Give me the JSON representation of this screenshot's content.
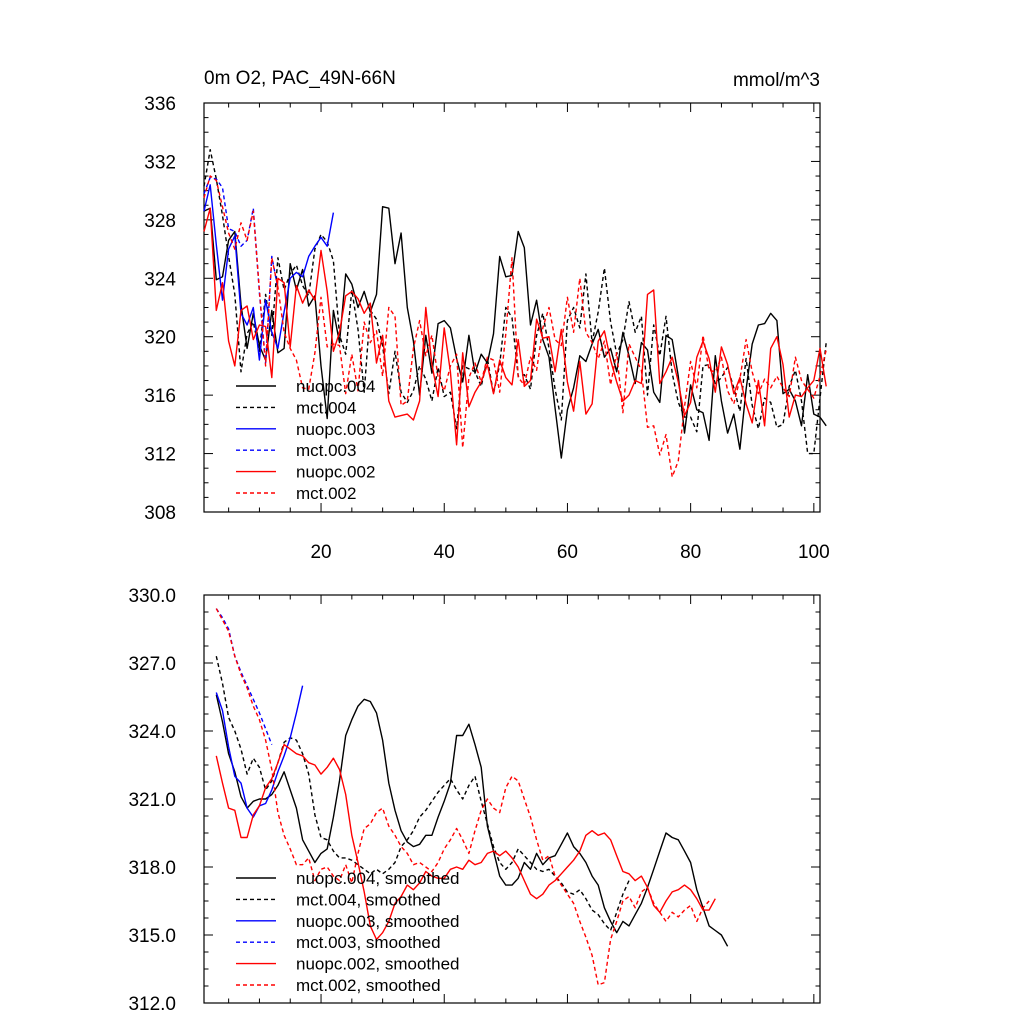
{
  "chart_data": [
    {
      "type": "line",
      "title_left": "0m O2, PAC_49N-66N",
      "title_right": "mmol/m^3",
      "xlim": [
        1,
        101
      ],
      "ylim": [
        308,
        336
      ],
      "xticks": [
        20,
        40,
        60,
        80,
        100
      ],
      "yticks": [
        308,
        312,
        316,
        320,
        324,
        328,
        332,
        336
      ],
      "ytick_labels": [
        "308",
        "312",
        "316",
        "320",
        "324",
        "328",
        "332",
        "336"
      ],
      "legend_position": "bottom-left",
      "series": [
        {
          "name": "nuopc.004",
          "color": "#000000",
          "dash": false,
          "x_start": 1,
          "values": [
            328.6,
            328.8,
            323.9,
            324.1,
            326.6,
            327.2,
            322.2,
            319.2,
            321.6,
            319.4,
            318.4,
            321.8,
            318.9,
            319.2,
            325.0,
            323.2,
            324.6,
            322.1,
            322.8,
            318.0,
            314.4,
            321.8,
            319.6,
            324.3,
            323.6,
            322.0,
            323.1,
            321.7,
            322.9,
            328.9,
            328.8,
            325.0,
            327.1,
            322.0,
            319.7,
            316.0,
            320.1,
            317.5,
            320.9,
            321.1,
            320.6,
            318.5,
            316.9,
            320.1,
            317.5,
            318.8,
            318.2,
            320.2,
            325.5,
            324.1,
            324.2,
            327.2,
            326.1,
            320.8,
            322.5,
            319.8,
            318.6,
            315.1,
            311.7,
            315.0,
            316.5,
            318.7,
            318.3,
            319.5,
            320.5,
            318.6,
            319.2,
            317.6,
            320.3,
            318.7,
            316.8,
            319.6,
            319.1,
            316.2,
            315.5,
            320.1,
            319.8,
            317.3,
            313.4,
            316.7,
            315.0,
            314.8,
            312.9,
            318.7,
            315.6,
            313.4,
            314.7,
            312.3,
            316.4,
            319.5,
            320.8,
            320.9,
            321.6,
            321.1,
            316.1,
            316.4,
            315.6,
            313.9,
            317.4,
            314.7,
            314.5,
            313.9
          ]
        },
        {
          "name": "mct.004",
          "color": "#000000",
          "dash": true,
          "x_start": 1,
          "values": [
            330.3,
            332.8,
            330.8,
            328.3,
            325.5,
            322.9,
            317.6,
            320.2,
            321.0,
            319.0,
            322.9,
            320.1,
            325.4,
            323.2,
            324.3,
            324.9,
            323.5,
            322.8,
            326.0,
            327.0,
            326.5,
            325.2,
            320.1,
            318.8,
            323.2,
            320.5,
            316.2,
            321.8,
            321.2,
            319.4,
            316.1,
            319.0,
            316.2,
            315.5,
            316.3,
            318.0,
            317.1,
            315.6,
            317.9,
            315.9,
            316.2,
            313.7,
            318.0,
            317.8,
            317.6,
            316.6,
            318.5,
            316.1,
            318.1,
            322.0,
            321.3,
            317.3,
            317.4,
            316.4,
            320.1,
            321.6,
            319.2,
            316.4,
            314.3,
            321.1,
            322.0,
            320.6,
            324.3,
            319.6,
            321.7,
            324.7,
            321.0,
            318.8,
            319.8,
            322.4,
            320.3,
            321.4,
            316.0,
            320.8,
            318.7,
            321.4,
            317.5,
            315.5,
            314.5,
            314.5,
            313.5,
            318.0,
            318.1,
            316.8,
            317.2,
            317.9,
            316.5,
            314.9,
            318.5,
            315.3,
            313.7,
            315.8,
            315.5,
            313.8,
            314.0,
            316.6,
            317.7,
            315.6,
            312.0,
            312.0,
            315.8,
            319.6
          ]
        },
        {
          "name": "nuopc.003",
          "color": "#0000ff",
          "dash": false,
          "x_start": 1,
          "values": [
            328.6,
            330.4,
            326.3,
            322.5,
            326.0,
            326.9,
            321.6,
            320.8,
            322.0,
            318.4,
            322.5,
            320.3,
            319.2,
            321.7,
            324.0,
            324.4,
            324.1,
            325.5,
            326.2,
            326.8,
            326.2,
            328.5
          ]
        },
        {
          "name": "mct.003",
          "color": "#0000ff",
          "dash": true,
          "x_start": 1,
          "values": [
            329.8,
            330.9,
            330.8,
            330.2,
            327.4,
            327.2,
            326.2,
            326.6,
            328.8,
            323.0,
            318.2,
            325.5,
            323.3
          ]
        },
        {
          "name": "nuopc.002",
          "color": "#ff0000",
          "dash": false,
          "x_start": 1,
          "values": [
            327.2,
            328.8,
            321.8,
            323.7,
            319.7,
            318.0,
            321.8,
            322.1,
            319.8,
            320.8,
            320.7,
            317.2,
            324.0,
            323.7,
            319.3,
            323.5,
            322.3,
            323.2,
            322.5,
            325.9,
            323.1,
            319.0,
            320.3,
            322.8,
            323.1,
            322.6,
            321.6,
            322.3,
            318.2,
            320.1,
            315.6,
            314.5,
            314.6,
            314.7,
            314.3,
            315.6,
            322.0,
            318.1,
            315.9,
            320.6,
            317.6,
            312.6,
            318.9,
            315.2,
            316.2,
            316.9,
            318.1,
            316.1,
            318.4,
            317.2,
            316.7,
            319.8,
            316.6,
            317.0,
            321.2,
            319.9,
            320.0,
            317.6,
            320.5,
            316.9,
            314.9,
            318.3,
            314.7,
            315.4,
            319.7,
            320.4,
            318.4,
            316.9,
            315.6,
            316.0,
            317.0,
            316.8,
            322.9,
            323.2,
            316.8,
            317.6,
            318.6,
            316.9,
            314.6,
            315.5,
            318.6,
            319.7,
            318.5,
            316.2,
            319.3,
            318.1,
            316.1,
            317.2,
            315.4,
            314.1,
            317.0,
            313.9,
            319.2,
            320.0,
            318.1,
            314.5,
            316.0,
            315.9,
            316.5,
            317.0,
            319.2,
            316.6
          ]
        },
        {
          "name": "mct.002",
          "color": "#ff0000",
          "dash": true,
          "x_start": 1,
          "values": [
            329.5,
            331.0,
            330.7,
            328.9,
            327.1,
            326.0,
            327.8,
            326.6,
            328.6,
            323.2,
            318.0,
            325.4,
            323.4,
            320.3,
            319.2,
            318.4,
            316.5,
            316.4,
            318.9,
            322.7,
            319.3,
            319.5,
            319.4,
            316.1,
            318.8,
            316.3,
            321.0,
            319.6,
            320.4,
            317.3,
            322.0,
            321.4,
            315.3,
            315.6,
            319.2,
            321.1,
            318.7,
            320.1,
            317.2,
            316.3,
            318.0,
            318.8,
            312.4,
            317.2,
            318.2,
            316.9,
            318.6,
            318.4,
            316.2,
            320.2,
            325.4,
            317.2,
            316.7,
            318.6,
            317.7,
            320.6,
            322.0,
            319.8,
            319.4,
            322.7,
            320.3,
            324.0,
            320.3,
            319.6,
            318.5,
            319.7,
            316.7,
            318.9,
            314.8,
            319.5,
            318.6,
            317.7,
            313.8,
            313.9,
            311.9,
            313.3,
            310.4,
            311.5,
            315.2,
            318.3,
            316.5,
            320.1,
            317.7,
            317.6,
            318.6,
            316.3,
            315.4,
            317.1,
            319.8,
            317.6,
            316.1,
            317.1,
            316.5,
            317.3,
            316.5,
            315.9,
            318.6,
            317.0,
            316.4,
            315.8,
            317.3,
            319.1
          ]
        }
      ]
    },
    {
      "type": "line",
      "xlim": [
        1,
        101
      ],
      "ylim": [
        312,
        330
      ],
      "xticks": [
        20,
        40,
        60,
        80,
        100
      ],
      "yticks": [
        312,
        315,
        318,
        321,
        324,
        327,
        330
      ],
      "ytick_labels": [
        "312.0",
        "315.0",
        "318.0",
        "321.0",
        "324.0",
        "327.0",
        "330.0"
      ],
      "legend_position": "bottom-left",
      "series": [
        {
          "name": "nuopc.004, smoothed",
          "color": "#000000",
          "dash": false,
          "x_start": 3,
          "values": [
            325.6,
            324.4,
            323.0,
            322.2,
            321.1,
            320.6,
            320.9,
            321.0,
            321.0,
            321.2,
            321.6,
            322.2,
            321.4,
            320.6,
            319.2,
            318.7,
            318.2,
            318.6,
            318.8,
            320.2,
            321.8,
            323.8,
            324.5,
            325.1,
            325.4,
            325.3,
            324.8,
            323.6,
            321.7,
            320.5,
            319.6,
            319.1,
            318.9,
            319.0,
            319.4,
            319.4,
            320.2,
            320.9,
            321.7,
            323.8,
            323.8,
            324.3,
            323.4,
            322.4,
            319.8,
            318.7,
            317.6,
            317.2,
            317.2,
            317.5,
            318.2,
            317.9,
            318.6,
            318.1,
            318.4,
            318.5,
            319.0,
            319.5,
            318.9,
            318.6,
            318.2,
            317.6,
            317.2,
            316.2,
            315.6,
            315.1,
            315.6,
            315.4,
            315.9,
            316.4,
            317.1,
            317.9,
            318.7,
            319.5,
            319.3,
            319.2,
            318.7,
            318.2,
            317.0,
            316.2,
            315.4,
            315.2,
            315.0,
            314.5
          ]
        },
        {
          "name": "mct.004, smoothed",
          "color": "#000000",
          "dash": true,
          "x_start": 3,
          "values": [
            327.3,
            326.1,
            324.6,
            324.0,
            323.2,
            322.1,
            322.8,
            322.4,
            321.4,
            321.8,
            322.6,
            323.5,
            323.7,
            323.6,
            323.0,
            322.1,
            320.3,
            319.3,
            319.2,
            318.7,
            318.4,
            318.4,
            318.3,
            318.1,
            317.9,
            317.7,
            317.9,
            317.7,
            317.9,
            318.2,
            318.9,
            319.2,
            319.6,
            320.2,
            320.5,
            320.9,
            321.3,
            321.6,
            321.9,
            321.4,
            321.0,
            321.6,
            322.0,
            320.9,
            319.9,
            318.9,
            318.2,
            317.9,
            318.2,
            318.8,
            318.5,
            318.2,
            317.9,
            317.8,
            317.9,
            317.6,
            317.3,
            316.9,
            316.8,
            317.0,
            316.6,
            316.1,
            315.9,
            315.5,
            315.2,
            316.0,
            316.8,
            317.4
          ]
        },
        {
          "name": "nuopc.003, smoothed",
          "color": "#0000ff",
          "dash": false,
          "x_start": 3,
          "values": [
            325.7,
            324.9,
            323.3,
            322.0,
            321.7,
            320.6,
            320.2,
            320.7,
            320.8,
            321.4,
            322.2,
            322.9,
            323.7,
            324.8,
            326.0
          ]
        },
        {
          "name": "mct.003, smoothed",
          "color": "#0000ff",
          "dash": true,
          "x_start": 3,
          "values": [
            329.4,
            329.0,
            328.5,
            327.3,
            326.6,
            326.0,
            325.4,
            324.8,
            324.1,
            323.4
          ]
        },
        {
          "name": "nuopc.002, smoothed",
          "color": "#ff0000",
          "dash": false,
          "x_start": 3,
          "values": [
            322.9,
            321.7,
            320.6,
            320.5,
            319.3,
            319.3,
            320.3,
            320.7,
            321.5,
            321.9,
            322.6,
            323.4,
            323.2,
            323.0,
            322.9,
            322.6,
            322.5,
            322.1,
            322.4,
            322.8,
            322.3,
            321.2,
            319.4,
            318.2,
            316.9,
            315.4,
            314.8,
            315.1,
            315.6,
            316.4,
            316.7,
            317.2,
            317.0,
            317.3,
            317.8,
            317.6,
            317.5,
            317.5,
            317.9,
            318.0,
            317.9,
            318.3,
            318.1,
            318.2,
            318.6,
            318.7,
            318.5,
            318.7,
            318.4,
            318.0,
            317.4,
            316.8,
            316.6,
            316.8,
            317.2,
            317.4,
            317.7,
            318.0,
            318.3,
            318.7,
            319.4,
            319.6,
            319.4,
            319.5,
            319.2,
            318.5,
            317.8,
            317.7,
            317.4,
            317.6,
            317.1,
            316.3,
            316.0,
            316.5,
            316.9,
            317.0,
            317.2,
            317.0,
            316.6,
            316.1,
            316.1,
            316.6
          ]
        },
        {
          "name": "mct.002, smoothed",
          "color": "#ff0000",
          "dash": true,
          "x_start": 3,
          "values": [
            329.4,
            328.9,
            328.4,
            327.3,
            326.5,
            325.9,
            325.1,
            324.5,
            323.6,
            322.3,
            320.4,
            319.4,
            318.8,
            318.1,
            318.1,
            318.4,
            317.4,
            317.9,
            318.0,
            317.6,
            317.4,
            318.1,
            317.3,
            318.6,
            319.7,
            319.9,
            320.4,
            320.6,
            319.8,
            319.4,
            318.9,
            318.6,
            318.1,
            318.2,
            318.0,
            317.8,
            318.2,
            318.8,
            319.2,
            319.7,
            319.2,
            318.6,
            319.6,
            320.5,
            321.0,
            320.6,
            320.4,
            321.5,
            322.0,
            321.8,
            321.0,
            320.2,
            319.2,
            318.3,
            318.5,
            317.6,
            317.2,
            316.8,
            316.4,
            315.6,
            314.9,
            314.1,
            312.8,
            312.9,
            314.8,
            315.6,
            316.5,
            316.7,
            316.2,
            316.9,
            317.1,
            316.4,
            316.0,
            315.6,
            316.0,
            315.8,
            316.1,
            316.3,
            315.6,
            316.2,
            316.5
          ]
        }
      ]
    }
  ]
}
